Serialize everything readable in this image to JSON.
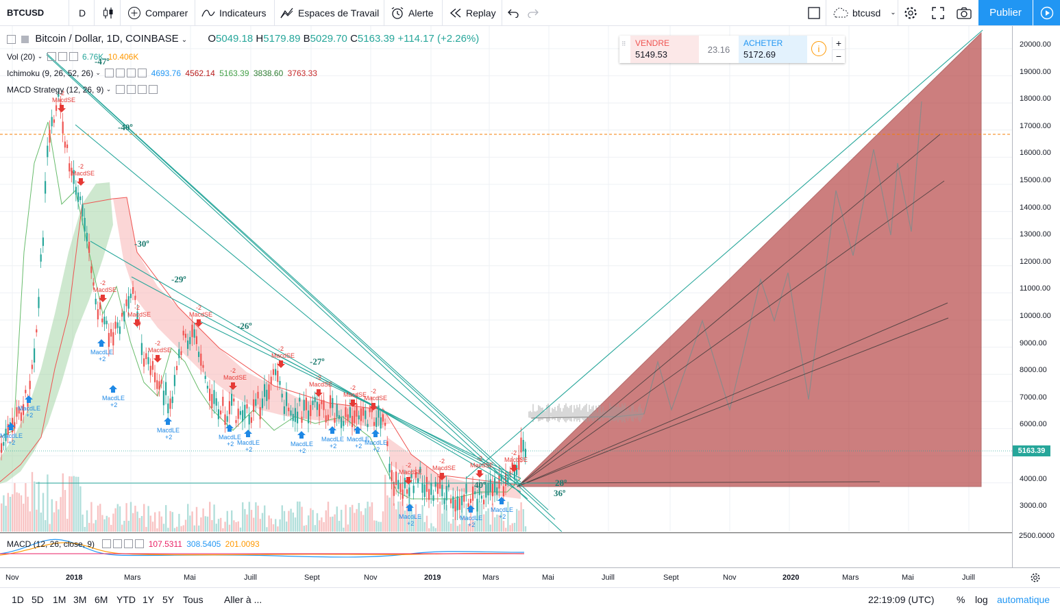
{
  "toolbar": {
    "symbol": "BTCUSD",
    "interval": "D",
    "compare": "Comparer",
    "indicators": "Indicateurs",
    "workspaces": "Espaces de Travail",
    "alert": "Alerte",
    "replay": "Replay",
    "layout_name": "btcusd",
    "publish": "Publier"
  },
  "legend": {
    "title": "Bitcoin / Dollar, 1D, COINBASE",
    "o_label": "O",
    "o": "5049.18",
    "h_label": "H",
    "h": "5179.89",
    "b_label": "B",
    "b": "5029.70",
    "c_label": "C",
    "c": "5163.39",
    "change": "+114.17 (+2.26%)",
    "vol_name": "Vol (20)",
    "vol_v1": "6.76K",
    "vol_v2": "10.406K",
    "ichi_name": "Ichimoku (9, 26, 52, 26)",
    "ichi_v1": "4693.76",
    "ichi_v2": "4562.14",
    "ichi_v3": "5163.39",
    "ichi_v4": "3838.60",
    "ichi_v5": "3763.33",
    "macd_strat": "MACD Strategy (12, 26, 9)"
  },
  "trade": {
    "sell_label": "VENDRE",
    "sell_price": "5149.53",
    "spread": "23.16",
    "buy_label": "ACHETER",
    "buy_price": "5172.69"
  },
  "price_axis": [
    "20000.00",
    "19000.00",
    "18000.00",
    "17000.00",
    "16000.00",
    "15000.00",
    "14000.00",
    "13000.00",
    "12000.00",
    "11000.00",
    "10000.00",
    "9000.00",
    "8000.00",
    "7000.00",
    "6000.00",
    "4000.00",
    "3000.00"
  ],
  "current_price": "5163.39",
  "macd_axis": "2500.0000",
  "macd": {
    "name": "MACD (12, 26, close, 9)",
    "v1": "107.5311",
    "v2": "308.5405",
    "v3": "201.0093"
  },
  "time_axis": [
    "Nov",
    "2018",
    "Mars",
    "Mai",
    "Juill",
    "Sept",
    "Nov",
    "2019",
    "Mars",
    "Mai",
    "Juill",
    "Sept",
    "Nov",
    "2020",
    "Mars",
    "Mai",
    "Juill"
  ],
  "angles": [
    "-47º",
    "-40º",
    "-30º",
    "-29º",
    "-26º",
    "-27º",
    "40º",
    "28º",
    "36º"
  ],
  "signals": {
    "short": "MacdSE",
    "long": "MacdLE",
    "minus2": "-2",
    "plus2": "+2"
  },
  "bottombar": {
    "ranges": [
      "1D",
      "5D",
      "1M",
      "3M",
      "6M",
      "YTD",
      "1Y",
      "5Y",
      "Tous"
    ],
    "goto": "Aller à ...",
    "clock": "22:19:09 (UTC)",
    "percent": "%",
    "log": "log",
    "auto": "automatique"
  },
  "colors": {
    "accent": "#2196f3",
    "up": "#26a69a",
    "down": "#ef5350",
    "forecast": "#b23a3a",
    "cloud_green": "#a5d6a7",
    "cloud_red": "#f8bbbb"
  }
}
